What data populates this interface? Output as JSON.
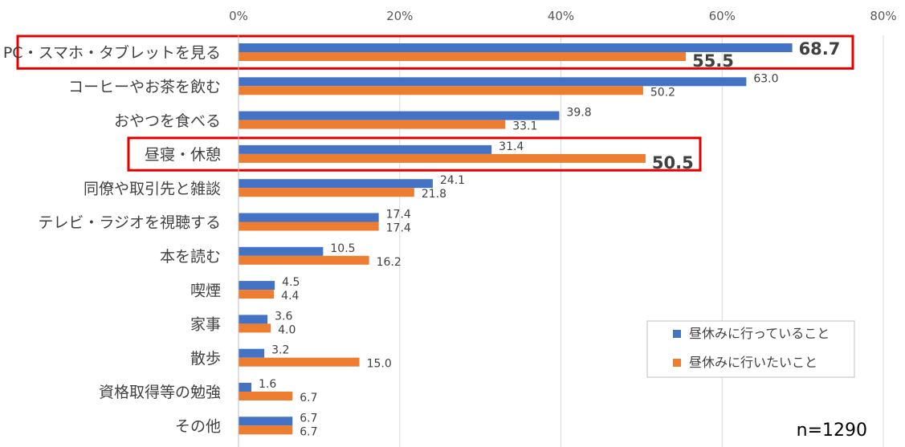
{
  "chart_data": {
    "type": "bar",
    "orientation": "horizontal",
    "title": "",
    "xlabel": "",
    "ylabel": "",
    "xlim": [
      0,
      80
    ],
    "x_ticks": [
      "0%",
      "20%",
      "40%",
      "60%",
      "80%"
    ],
    "grid": true,
    "categories": [
      "PC・スマホ・タブレットを見る",
      "コーヒーやお茶を飲む",
      "おやつを食べる",
      "昼寝・休憩",
      "同僚や取引先と雑談",
      "テレビ・ラジオを視聴する",
      "本を読む",
      "喫煙",
      "家事",
      "散歩",
      "資格取得等の勉強",
      "その他"
    ],
    "series": [
      {
        "name": "昼休みに行っていること",
        "color": "#4472C4",
        "values": [
          68.7,
          63.0,
          39.8,
          31.4,
          24.1,
          17.4,
          10.5,
          4.5,
          3.6,
          3.2,
          1.6,
          6.7
        ],
        "labels": [
          "68.7",
          "63.0",
          "39.8",
          "31.4",
          "24.1",
          "17.4",
          "10.5",
          "4.5",
          "3.6",
          "3.2",
          "1.6",
          "6.7"
        ]
      },
      {
        "name": "昼休みに行いたいこと",
        "color": "#ED7D31",
        "values": [
          55.5,
          50.2,
          33.1,
          50.5,
          21.8,
          17.4,
          16.2,
          4.4,
          4.0,
          15.0,
          6.7,
          6.7
        ],
        "labels": [
          "55.5",
          "50.2",
          "33.1",
          "50.5",
          "21.8",
          "17.4",
          "16.2",
          "4.4",
          "4.0",
          "15.0",
          "6.7",
          "6.7"
        ]
      }
    ],
    "emphasized_labels": [
      {
        "category_index": 0,
        "series_index": 0
      },
      {
        "category_index": 0,
        "series_index": 1
      },
      {
        "category_index": 3,
        "series_index": 1
      }
    ],
    "highlighted_categories": [
      0,
      3
    ],
    "highlight_color": "#E00000",
    "legend_position": "bottom-right",
    "note": "n=1290"
  }
}
